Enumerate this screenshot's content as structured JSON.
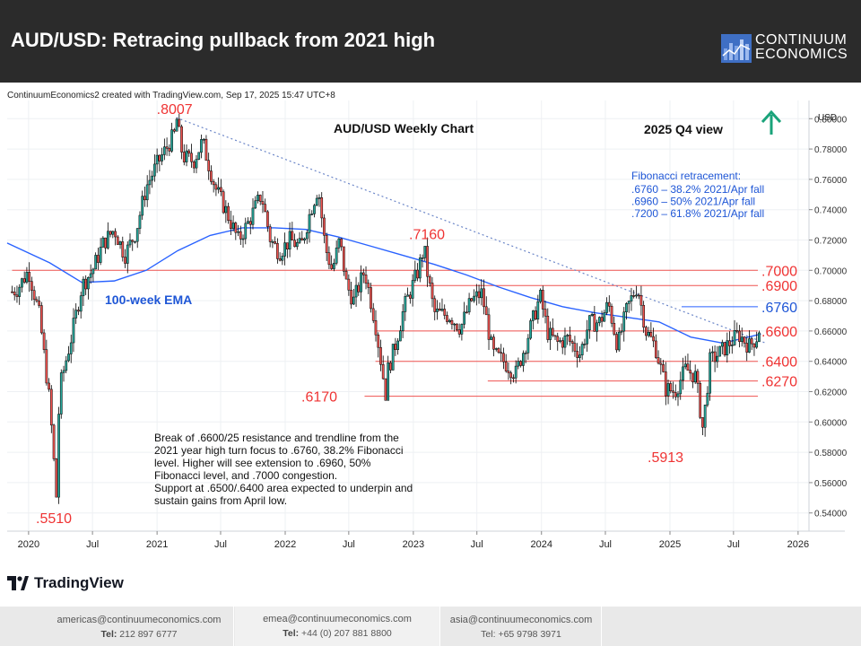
{
  "header": {
    "title": "AUD/USD: Retracing pullback from 2021 high",
    "logo_line1": "CONTINUUM",
    "logo_line2": "ECONOMICS"
  },
  "created_line": "ContinuumEconomics2 created with TradingView.com, Sep 17, 2025 15:47 UTC+8",
  "brand": {
    "tradingview": "TradingView"
  },
  "colors": {
    "header_bg": "#2b2b2b",
    "candle_up": "#26a69a",
    "candle_down": "#ef5350",
    "candle_body": "#000000",
    "ema": "#2962ff",
    "level_line": "#ef5350",
    "label_red": "#ef3333",
    "label_blue": "#1e56d6",
    "arrow": "#1aa37a"
  },
  "annotations": {
    "chart_title": "AUD/USD Weekly Chart",
    "view": "2025 Q4 view",
    "fib_title": "Fibonacci retracement:",
    "fib_lines": [
      ".6760 – 38.2% 2021/Apr fall",
      ".6960 – 50% 2021/Apr fall",
      ".7200 – 61.8% 2021/Apr fall"
    ],
    "ema_label": "100-week EMA",
    "comment": [
      "Break of .6600/25 resistance and trendline from the",
      "2021 year high turn focus to .6760, 38.2% Fibonacci",
      "level. Higher will see extension to .6960, 50%",
      "Fibonacci level, and .7000 congestion.",
      "Support at .6500/.6400 area expected to underpin and",
      "sustain gains from April low."
    ],
    "arrow": "up-arrow"
  },
  "chart_data": {
    "type": "candlestick",
    "title": "AUD/USD Weekly Chart",
    "y_axis_label": "USD",
    "ylim": [
      0.528,
      0.812
    ],
    "y_ticks": [
      0.8,
      0.78,
      0.76,
      0.74,
      0.72,
      0.7,
      0.68,
      0.66,
      0.64,
      0.62,
      0.6,
      0.58,
      0.56,
      0.54
    ],
    "y_tick_labels": [
      "0.80000",
      "0.78000",
      "0.76000",
      "0.74000",
      "0.72000",
      "0.70000",
      "0.68000",
      "0.66000",
      "0.64000",
      "0.62000",
      "0.60000",
      "0.58000",
      "0.56000",
      "0.54000"
    ],
    "x_range": [
      "2019-11-01",
      "2026-02-01"
    ],
    "x_ticks": [
      {
        "date": "2020-01-01",
        "label": "2020"
      },
      {
        "date": "2020-07-01",
        "label": "Jul"
      },
      {
        "date": "2021-01-01",
        "label": "2021"
      },
      {
        "date": "2021-07-01",
        "label": "Jul"
      },
      {
        "date": "2022-01-01",
        "label": "2022"
      },
      {
        "date": "2022-07-01",
        "label": "Jul"
      },
      {
        "date": "2023-01-01",
        "label": "2023"
      },
      {
        "date": "2023-07-01",
        "label": "Jul"
      },
      {
        "date": "2024-01-01",
        "label": "2024"
      },
      {
        "date": "2024-07-01",
        "label": "Jul"
      },
      {
        "date": "2025-01-01",
        "label": "2025"
      },
      {
        "date": "2025-07-01",
        "label": "Jul"
      },
      {
        "date": "2026-01-01",
        "label": "2026"
      }
    ],
    "series": [
      {
        "name": "AUD/USD weekly close (approx.)",
        "points": [
          [
            "2019-11-01",
            0.684
          ],
          [
            "2019-12-01",
            0.688
          ],
          [
            "2020-01-01",
            0.7
          ],
          [
            "2020-02-01",
            0.67
          ],
          [
            "2020-03-01",
            0.613
          ],
          [
            "2020-03-20",
            0.58
          ],
          [
            "2020-04-01",
            0.625
          ],
          [
            "2020-05-01",
            0.655
          ],
          [
            "2020-06-01",
            0.69
          ],
          [
            "2020-07-01",
            0.7
          ],
          [
            "2020-08-01",
            0.718
          ],
          [
            "2020-09-01",
            0.727
          ],
          [
            "2020-10-01",
            0.71
          ],
          [
            "2020-11-01",
            0.725
          ],
          [
            "2020-12-01",
            0.755
          ],
          [
            "2021-01-01",
            0.77
          ],
          [
            "2021-02-20",
            0.79
          ],
          [
            "2021-03-15",
            0.775
          ],
          [
            "2021-04-15",
            0.772
          ],
          [
            "2021-05-10",
            0.785
          ],
          [
            "2021-06-15",
            0.755
          ],
          [
            "2021-07-15",
            0.74
          ],
          [
            "2021-08-20",
            0.72
          ],
          [
            "2021-09-15",
            0.73
          ],
          [
            "2021-10-25",
            0.75
          ],
          [
            "2021-11-20",
            0.72
          ],
          [
            "2021-12-15",
            0.712
          ],
          [
            "2022-01-15",
            0.72
          ],
          [
            "2022-02-15",
            0.715
          ],
          [
            "2022-03-15",
            0.74
          ],
          [
            "2022-04-05",
            0.755
          ],
          [
            "2022-04-25",
            0.715
          ],
          [
            "2022-05-15",
            0.7
          ],
          [
            "2022-06-05",
            0.72
          ],
          [
            "2022-06-25",
            0.69
          ],
          [
            "2022-07-15",
            0.68
          ],
          [
            "2022-08-15",
            0.7
          ],
          [
            "2022-09-15",
            0.665
          ],
          [
            "2022-10-15",
            0.63
          ],
          [
            "2022-11-10",
            0.65
          ],
          [
            "2022-12-05",
            0.675
          ],
          [
            "2023-01-15",
            0.7
          ],
          [
            "2023-02-05",
            0.705
          ],
          [
            "2023-03-01",
            0.672
          ],
          [
            "2023-04-15",
            0.67
          ],
          [
            "2023-05-15",
            0.662
          ],
          [
            "2023-06-15",
            0.68
          ],
          [
            "2023-07-15",
            0.685
          ],
          [
            "2023-08-15",
            0.645
          ],
          [
            "2023-09-15",
            0.64
          ],
          [
            "2023-10-20",
            0.632
          ],
          [
            "2023-11-15",
            0.65
          ],
          [
            "2023-12-28",
            0.683
          ],
          [
            "2024-01-20",
            0.658
          ],
          [
            "2024-02-15",
            0.652
          ],
          [
            "2024-03-15",
            0.655
          ],
          [
            "2024-04-20",
            0.645
          ],
          [
            "2024-05-15",
            0.665
          ],
          [
            "2024-06-15",
            0.666
          ],
          [
            "2024-07-10",
            0.678
          ],
          [
            "2024-08-05",
            0.65
          ],
          [
            "2024-09-01",
            0.675
          ],
          [
            "2024-09-30",
            0.69
          ],
          [
            "2024-10-25",
            0.66
          ],
          [
            "2024-11-20",
            0.65
          ],
          [
            "2024-12-20",
            0.622
          ],
          [
            "2025-01-15",
            0.62
          ],
          [
            "2025-02-15",
            0.635
          ],
          [
            "2025-03-15",
            0.63
          ],
          [
            "2025-04-07",
            0.6
          ],
          [
            "2025-04-25",
            0.64
          ],
          [
            "2025-05-20",
            0.645
          ],
          [
            "2025-06-20",
            0.652
          ],
          [
            "2025-07-15",
            0.658
          ],
          [
            "2025-08-15",
            0.65
          ],
          [
            "2025-09-05",
            0.656
          ],
          [
            "2025-09-17",
            0.665
          ]
        ]
      },
      {
        "name": "100-week EMA",
        "points": [
          [
            "2019-11-01",
            0.718
          ],
          [
            "2020-03-01",
            0.705
          ],
          [
            "2020-06-01",
            0.692
          ],
          [
            "2020-09-01",
            0.693
          ],
          [
            "2020-12-01",
            0.7
          ],
          [
            "2021-03-01",
            0.713
          ],
          [
            "2021-06-01",
            0.723
          ],
          [
            "2021-09-01",
            0.728
          ],
          [
            "2021-12-01",
            0.728
          ],
          [
            "2022-03-01",
            0.727
          ],
          [
            "2022-06-01",
            0.722
          ],
          [
            "2022-09-01",
            0.716
          ],
          [
            "2022-12-01",
            0.71
          ],
          [
            "2023-03-01",
            0.704
          ],
          [
            "2023-06-01",
            0.697
          ],
          [
            "2023-09-01",
            0.689
          ],
          [
            "2023-12-01",
            0.682
          ],
          [
            "2024-03-01",
            0.676
          ],
          [
            "2024-06-01",
            0.672
          ],
          [
            "2024-09-01",
            0.669
          ],
          [
            "2024-12-01",
            0.666
          ],
          [
            "2025-03-01",
            0.656
          ],
          [
            "2025-06-01",
            0.652
          ],
          [
            "2025-09-17",
            0.658
          ]
        ]
      }
    ],
    "key_points": [
      {
        "label": ".8007",
        "date": "2021-02-25",
        "value": 0.8007
      },
      {
        "label": ".7160",
        "date": "2023-02-01",
        "value": 0.716
      },
      {
        "label": ".6170",
        "date": "2022-10-15",
        "value": 0.617
      },
      {
        "label": ".5913",
        "date": "2025-04-07",
        "value": 0.5913
      },
      {
        "label": ".5510",
        "date": "2020-03-20",
        "value": 0.551
      }
    ],
    "horizontal_levels": [
      {
        "label": ".7000",
        "value": 0.7
      },
      {
        "label": ".6900",
        "value": 0.69
      },
      {
        "label": ".6760",
        "value": 0.676
      },
      {
        "label": ".6600",
        "value": 0.66
      },
      {
        "label": ".6400",
        "value": 0.64
      },
      {
        "label": ".6270",
        "value": 0.627
      },
      {
        "label": ".6170",
        "value": 0.617
      }
    ],
    "trendline": {
      "from": [
        "2021-02-25",
        0.8007
      ],
      "to": [
        "2025-10-01",
        0.652
      ]
    }
  }
}
